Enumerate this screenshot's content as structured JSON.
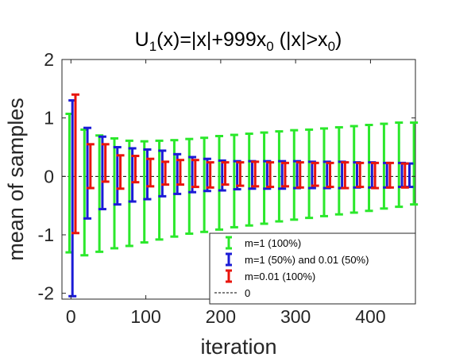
{
  "chart_data": {
    "type": "errorbar",
    "title": {
      "parts": [
        {
          "text": "U",
          "sub": false
        },
        {
          "text": "1",
          "sub": true
        },
        {
          "text": "(x)=|x|+999x",
          "sub": false
        },
        {
          "text": "0",
          "sub": true
        },
        {
          "text": " (|x|>x",
          "sub": false
        },
        {
          "text": "0",
          "sub": true
        },
        {
          "text": ")",
          "sub": false
        }
      ]
    },
    "xlabel": "iteration",
    "ylabel": "mean of samples",
    "xlim": [
      -12,
      460
    ],
    "ylim": [
      -2.1,
      2.0
    ],
    "xticks": [
      "0",
      "100",
      "200",
      "300",
      "400"
    ],
    "xtick_values": [
      0,
      100,
      200,
      300,
      400
    ],
    "yticks": [
      "2",
      "1",
      "0",
      "-1",
      "-2"
    ],
    "ytick_values": [
      2,
      1,
      0,
      -1,
      -2
    ],
    "grid": false,
    "legend_position": "bottom-right",
    "reference_line": {
      "y": 0,
      "label": "0",
      "color": "#000000",
      "style": "dashed"
    },
    "series": [
      {
        "name": "m=1 (100%)",
        "color": "#2be82b",
        "points": [
          {
            "x": -2,
            "low": -1.3,
            "high": 1.07
          },
          {
            "x": 18,
            "low": -1.35,
            "high": 0.8
          },
          {
            "x": 38,
            "low": -1.29,
            "high": 0.7
          },
          {
            "x": 58,
            "low": -1.23,
            "high": 0.65
          },
          {
            "x": 78,
            "low": -1.19,
            "high": 0.61
          },
          {
            "x": 98,
            "low": -1.13,
            "high": 0.6
          },
          {
            "x": 118,
            "low": -1.08,
            "high": 0.61
          },
          {
            "x": 138,
            "low": -1.03,
            "high": 0.62
          },
          {
            "x": 158,
            "low": -0.98,
            "high": 0.64
          },
          {
            "x": 178,
            "low": -0.95,
            "high": 0.66
          },
          {
            "x": 198,
            "low": -0.91,
            "high": 0.69
          },
          {
            "x": 218,
            "low": -0.87,
            "high": 0.71
          },
          {
            "x": 238,
            "low": -0.84,
            "high": 0.73
          },
          {
            "x": 258,
            "low": -0.81,
            "high": 0.75
          },
          {
            "x": 278,
            "low": -0.77,
            "high": 0.77
          },
          {
            "x": 298,
            "low": -0.74,
            "high": 0.79
          },
          {
            "x": 318,
            "low": -0.71,
            "high": 0.8
          },
          {
            "x": 338,
            "low": -0.68,
            "high": 0.82
          },
          {
            "x": 358,
            "low": -0.65,
            "high": 0.84
          },
          {
            "x": 378,
            "low": -0.62,
            "high": 0.86
          },
          {
            "x": 398,
            "low": -0.59,
            "high": 0.88
          },
          {
            "x": 418,
            "low": -0.55,
            "high": 0.9
          },
          {
            "x": 438,
            "low": -0.52,
            "high": 0.92
          },
          {
            "x": 458,
            "low": -0.48,
            "high": 0.92
          }
        ]
      },
      {
        "name": "m=1 (50%) and 0.01 (50%)",
        "color": "#1b1bd6",
        "points": [
          {
            "x": 2,
            "low": -2.05,
            "high": 1.3
          },
          {
            "x": 22,
            "low": -0.72,
            "high": 0.83
          },
          {
            "x": 42,
            "low": -0.56,
            "high": 0.68
          },
          {
            "x": 62,
            "low": -0.48,
            "high": 0.5
          },
          {
            "x": 82,
            "low": -0.43,
            "high": 0.48
          },
          {
            "x": 102,
            "low": -0.39,
            "high": 0.46
          },
          {
            "x": 122,
            "low": -0.34,
            "high": 0.44
          },
          {
            "x": 142,
            "low": -0.3,
            "high": 0.38
          },
          {
            "x": 162,
            "low": -0.27,
            "high": 0.33
          },
          {
            "x": 182,
            "low": -0.25,
            "high": 0.3
          },
          {
            "x": 202,
            "low": -0.24,
            "high": 0.27
          },
          {
            "x": 222,
            "low": -0.22,
            "high": 0.26
          },
          {
            "x": 242,
            "low": -0.21,
            "high": 0.26
          },
          {
            "x": 262,
            "low": -0.21,
            "high": 0.26
          },
          {
            "x": 282,
            "low": -0.21,
            "high": 0.26
          },
          {
            "x": 302,
            "low": -0.2,
            "high": 0.26
          },
          {
            "x": 322,
            "low": -0.2,
            "high": 0.25
          },
          {
            "x": 342,
            "low": -0.2,
            "high": 0.25
          },
          {
            "x": 362,
            "low": -0.2,
            "high": 0.25
          },
          {
            "x": 382,
            "low": -0.19,
            "high": 0.24
          },
          {
            "x": 402,
            "low": -0.19,
            "high": 0.24
          },
          {
            "x": 422,
            "low": -0.19,
            "high": 0.23
          },
          {
            "x": 442,
            "low": -0.18,
            "high": 0.23
          },
          {
            "x": 452,
            "low": -0.18,
            "high": 0.22
          }
        ]
      },
      {
        "name": "m=0.01 (100%)",
        "color": "#e8140c",
        "points": [
          {
            "x": 6,
            "low": -0.97,
            "high": 1.4
          },
          {
            "x": 26,
            "low": -0.2,
            "high": 0.55
          },
          {
            "x": 46,
            "low": -0.09,
            "high": 0.55
          },
          {
            "x": 66,
            "low": -0.21,
            "high": 0.36
          },
          {
            "x": 86,
            "low": -0.1,
            "high": 0.35
          },
          {
            "x": 106,
            "low": -0.17,
            "high": 0.3
          },
          {
            "x": 126,
            "low": -0.14,
            "high": 0.25
          },
          {
            "x": 146,
            "low": -0.14,
            "high": 0.28
          },
          {
            "x": 166,
            "low": -0.18,
            "high": 0.28
          },
          {
            "x": 186,
            "low": -0.19,
            "high": 0.24
          },
          {
            "x": 206,
            "low": -0.14,
            "high": 0.24
          },
          {
            "x": 226,
            "low": -0.16,
            "high": 0.24
          },
          {
            "x": 246,
            "low": -0.17,
            "high": 0.25
          },
          {
            "x": 266,
            "low": -0.18,
            "high": 0.24
          },
          {
            "x": 286,
            "low": -0.17,
            "high": 0.23
          },
          {
            "x": 306,
            "low": -0.19,
            "high": 0.24
          },
          {
            "x": 326,
            "low": -0.16,
            "high": 0.23
          },
          {
            "x": 346,
            "low": -0.18,
            "high": 0.23
          },
          {
            "x": 366,
            "low": -0.2,
            "high": 0.24
          },
          {
            "x": 386,
            "low": -0.18,
            "high": 0.23
          },
          {
            "x": 406,
            "low": -0.2,
            "high": 0.23
          },
          {
            "x": 426,
            "low": -0.19,
            "high": 0.23
          },
          {
            "x": 446,
            "low": -0.19,
            "high": 0.22
          }
        ]
      }
    ]
  }
}
